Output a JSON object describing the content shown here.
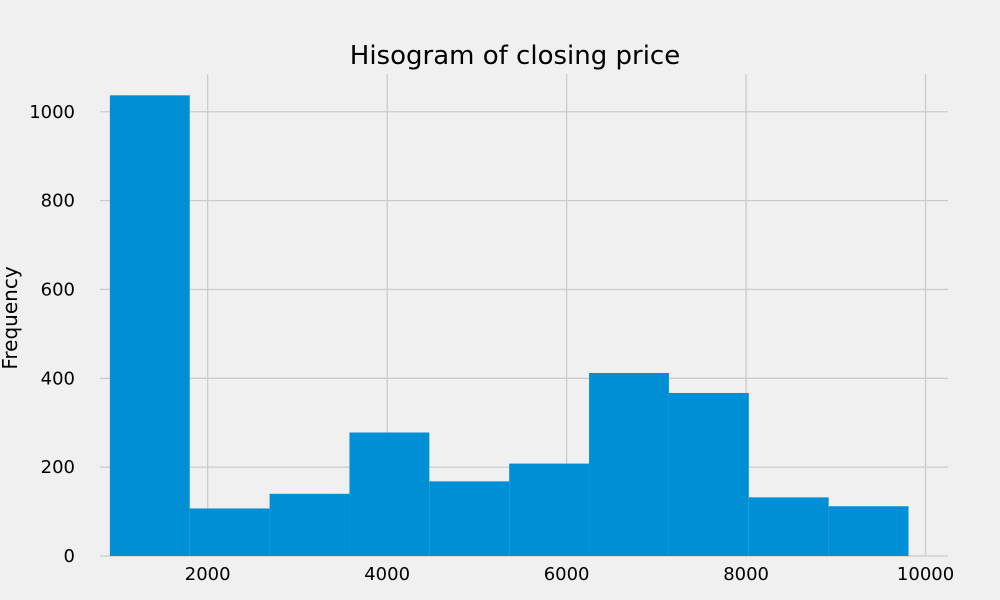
{
  "chart_data": {
    "type": "bar",
    "title": "Hisogram of closing price",
    "xlabel": "",
    "ylabel": "Frequency",
    "xlim": [
      800,
      10250
    ],
    "ylim": [
      0,
      1085
    ],
    "xticks": [
      2000,
      4000,
      6000,
      8000,
      10000
    ],
    "yticks": [
      0,
      200,
      400,
      600,
      800,
      1000
    ],
    "grid": true,
    "bar_color": "#008fd5",
    "bins": [
      {
        "x0": 910,
        "x1": 1800,
        "value": 1037
      },
      {
        "x0": 1800,
        "x1": 2690,
        "value": 107
      },
      {
        "x0": 2690,
        "x1": 3580,
        "value": 140
      },
      {
        "x0": 3580,
        "x1": 4470,
        "value": 278
      },
      {
        "x0": 4470,
        "x1": 5360,
        "value": 168
      },
      {
        "x0": 5360,
        "x1": 6250,
        "value": 208
      },
      {
        "x0": 6250,
        "x1": 7140,
        "value": 412
      },
      {
        "x0": 7140,
        "x1": 8030,
        "value": 367
      },
      {
        "x0": 8030,
        "x1": 8920,
        "value": 132
      },
      {
        "x0": 8920,
        "x1": 9810,
        "value": 112
      }
    ]
  }
}
